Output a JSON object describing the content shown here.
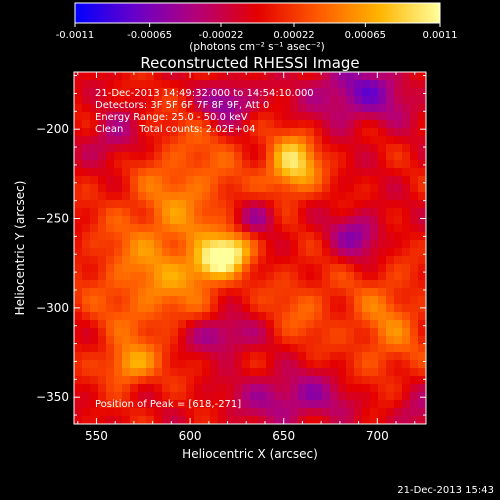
{
  "colorbar": {
    "tick_labels": [
      "-0.0011",
      "-0.00065",
      "-0.00022",
      "0.00022",
      "0.00065",
      "0.0011"
    ],
    "tick_values": [
      -0.0011,
      -0.00065,
      -0.00022,
      0.00022,
      0.00065,
      0.0011
    ],
    "range": [
      -0.0011,
      0.0011
    ],
    "unit_label": "(photons cm⁻² s⁻¹ asec⁻²)",
    "colors": [
      "#0000ff",
      "#6a00c8",
      "#b40078",
      "#e40000",
      "#ff5a00",
      "#ffb400",
      "#ffff9c"
    ]
  },
  "chart_data": {
    "type": "heatmap",
    "title": "Reconstructed RHESSI Image",
    "xlabel": "Heliocentric X (arcsec)",
    "ylabel": "Heliocentric Y (arcsec)",
    "xlim": [
      538,
      726
    ],
    "ylim": [
      -365,
      -168
    ],
    "x_ticks": [
      550,
      600,
      650,
      700
    ],
    "x_tick_labels": [
      "550",
      "600",
      "650",
      "700"
    ],
    "y_ticks": [
      -200,
      -250,
      -300,
      -350
    ],
    "y_tick_labels": [
      "−200",
      "−250",
      "−300",
      "−350"
    ],
    "info_lines": [
      "21-Dec-2013 14:49:32.000 to 14:54:10.000",
      "Detectors: 3F 5F 6F 7F 8F 9F, Att 0",
      "Energy Range: 25.0 - 50.0 keV",
      "Clean     Total counts: 2.02E+04"
    ],
    "peak_text": "Position of Peak = [618,-271]",
    "peak": {
      "x": 618,
      "y": -271,
      "value": 0.0011
    },
    "sources": [
      {
        "x": 618,
        "y": -271,
        "amp": 1.0,
        "sx": 12,
        "sy": 7,
        "rot": -35
      },
      {
        "x": 655,
        "y": -220,
        "amp": 0.85,
        "sx": 10,
        "sy": 12,
        "rot": 0
      },
      {
        "x": 567,
        "y": -332,
        "amp": 0.55,
        "sx": 9,
        "sy": 8,
        "rot": 0
      },
      {
        "x": 600,
        "y": -230,
        "amp": 0.35,
        "sx": 22,
        "sy": 28,
        "rot": 0
      },
      {
        "x": 580,
        "y": -285,
        "amp": 0.45,
        "sx": 25,
        "sy": 30,
        "rot": 0
      },
      {
        "x": 705,
        "y": -310,
        "amp": 0.4,
        "sx": 15,
        "sy": 25,
        "rot": 0
      },
      {
        "x": 660,
        "y": -300,
        "amp": 0.3,
        "sx": 14,
        "sy": 16,
        "rot": 0
      },
      {
        "x": 620,
        "y": -185,
        "amp": -0.6,
        "sx": 10,
        "sy": 8,
        "rot": 0
      },
      {
        "x": 690,
        "y": -180,
        "amp": -0.55,
        "sx": 20,
        "sy": 12,
        "rot": 0
      },
      {
        "x": 560,
        "y": -205,
        "amp": -0.4,
        "sx": 10,
        "sy": 10,
        "rot": 0
      },
      {
        "x": 635,
        "y": -250,
        "amp": -0.5,
        "sx": 8,
        "sy": 8,
        "rot": 0
      },
      {
        "x": 690,
        "y": -260,
        "amp": -0.5,
        "sx": 10,
        "sy": 9,
        "rot": 0
      },
      {
        "x": 615,
        "y": -315,
        "amp": -0.55,
        "sx": 14,
        "sy": 8,
        "rot": 0
      },
      {
        "x": 655,
        "y": -350,
        "amp": -0.45,
        "sx": 22,
        "sy": 10,
        "rot": 0
      },
      {
        "x": 720,
        "y": -360,
        "amp": -0.3,
        "sx": 10,
        "sy": 10,
        "rot": 0
      }
    ]
  },
  "footer": {
    "timestamp": "21-Dec-2013 15:43"
  }
}
